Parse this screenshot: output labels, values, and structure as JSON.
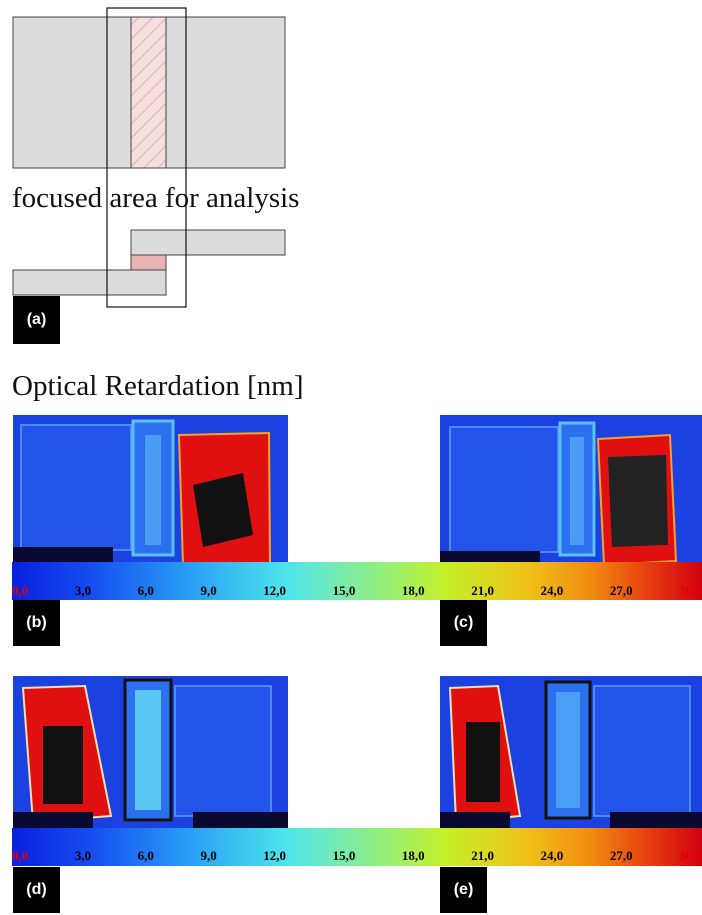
{
  "diagram": {
    "focus_caption": "focused area for analysis",
    "label_a": "(a)"
  },
  "retardation": {
    "title": "Optical Retardation [nm]",
    "colorbar_ticks": [
      "0,0",
      "3,0",
      "6,0",
      "9,0",
      "12,0",
      "15,0",
      "18,0",
      "21,0",
      "24,0",
      "27,0",
      "30,0"
    ],
    "tick_colors": [
      "#e00000",
      "#000000",
      "#000000",
      "#000000",
      "#000000",
      "#000000",
      "#000000",
      "#000000",
      "#000000",
      "#000000",
      "#e00000"
    ],
    "colorbar_stops": [
      "#0a1fe0",
      "#1650f0",
      "#2aa0f5",
      "#4ee6ec",
      "#9cf070",
      "#c6f028",
      "#f0c018",
      "#f08a10",
      "#e84010",
      "#d00010"
    ],
    "panels": [
      {
        "label": "(b)"
      },
      {
        "label": "(c)"
      },
      {
        "label": "(d)"
      },
      {
        "label": "(e)"
      }
    ]
  }
}
